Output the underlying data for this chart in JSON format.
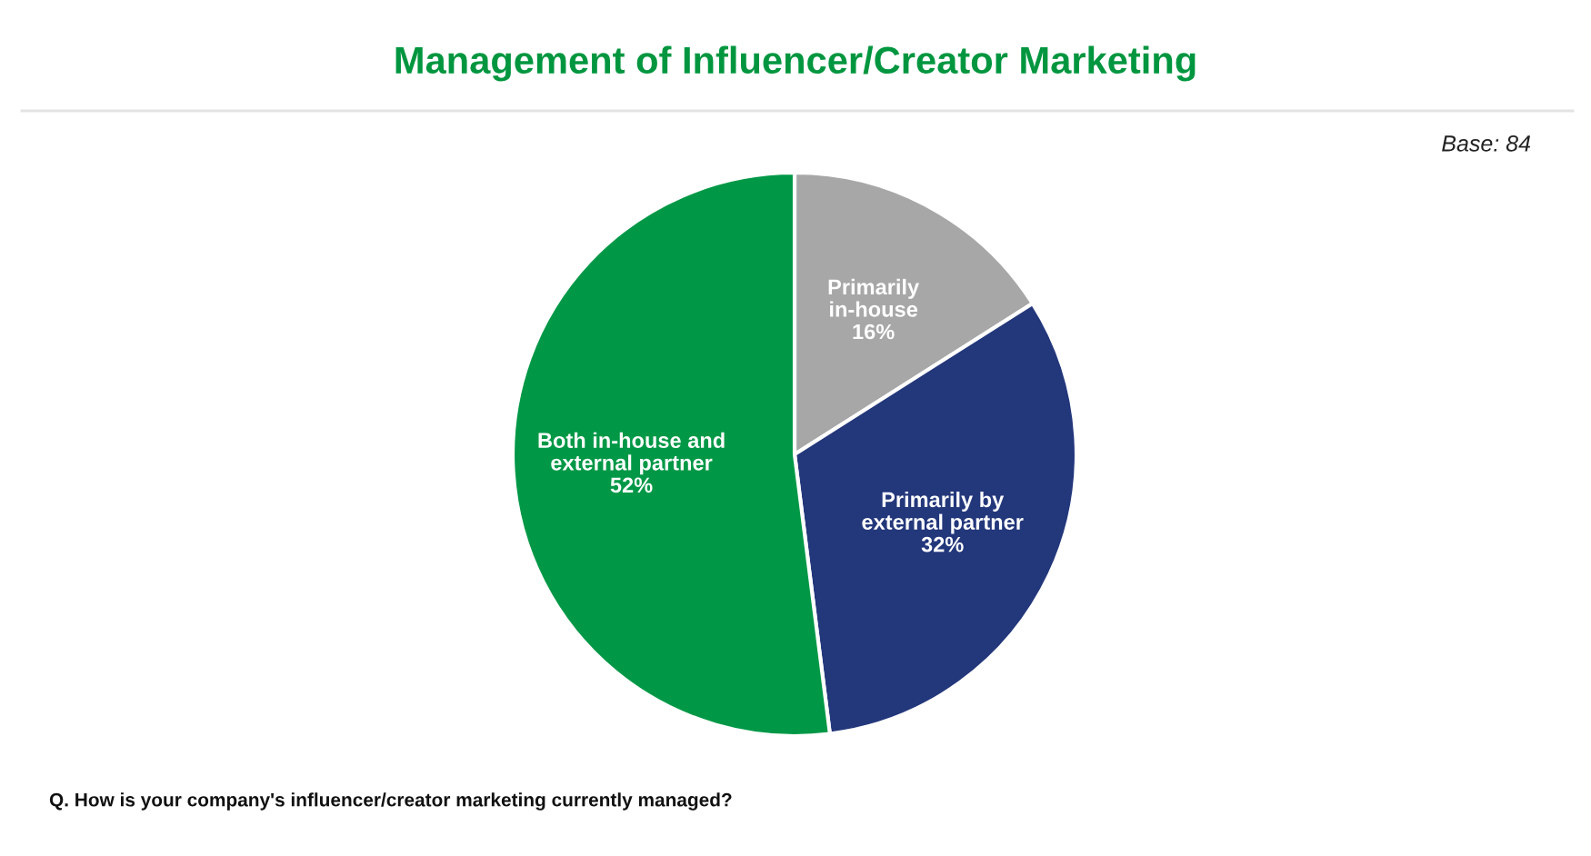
{
  "chart_data": {
    "type": "pie",
    "title": "Management of Influencer/Creator Marketing",
    "categories": [
      "Primarily\nin-house",
      "Primarily by\nexternal partner",
      "Both in-house and\nexternal partner"
    ],
    "values": [
      16,
      32,
      52
    ],
    "colors": [
      "#a7a7a7",
      "#23377b",
      "#009846"
    ],
    "value_labels": [
      "16%",
      "32%",
      "52%"
    ],
    "annotations": [
      "Base: 84",
      "Q. How is your company's influencer/creator marketing currently managed?"
    ]
  }
}
